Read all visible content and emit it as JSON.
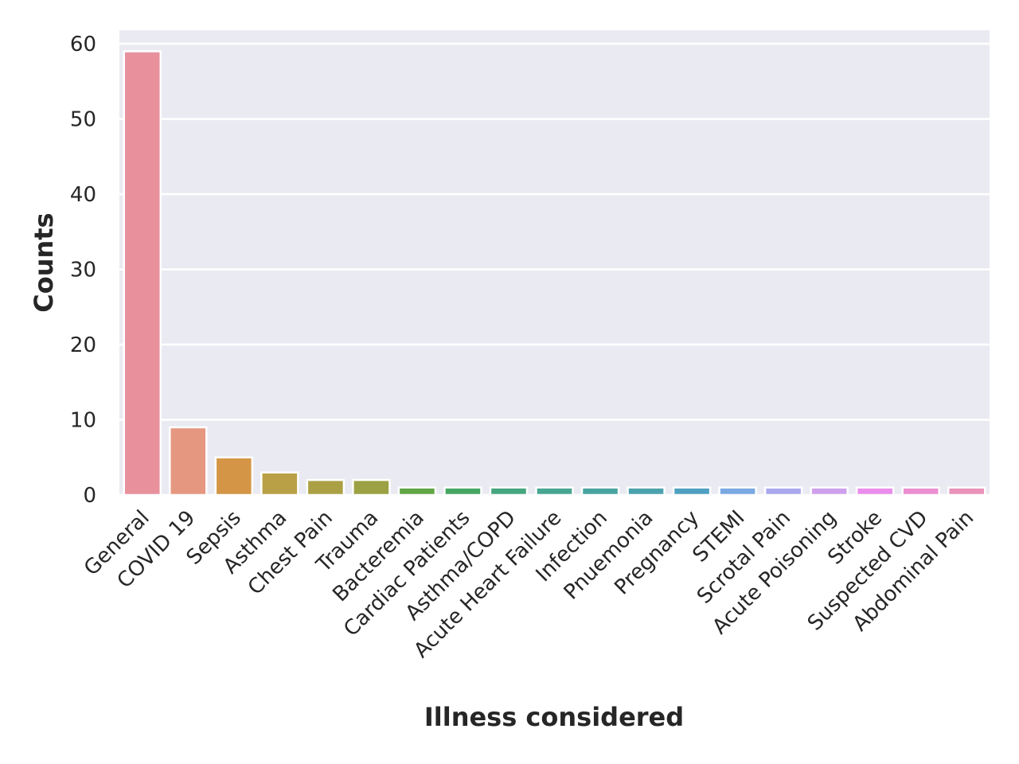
{
  "chart_data": {
    "type": "bar",
    "title": "",
    "xlabel": "Illness considered",
    "ylabel": "Counts",
    "ylim": [
      0,
      62
    ],
    "yticks": [
      0,
      10,
      20,
      30,
      40,
      50,
      60
    ],
    "grid": true,
    "categories": [
      "General",
      "COVID 19",
      "Sepsis",
      "Asthma",
      "Chest Pain",
      "Trauma",
      "Bacteremia",
      "Cardiac Patients",
      "Asthma/COPD",
      "Acute Heart Failure",
      "Infection",
      "Pnuemonia",
      "Pregnancy",
      "STEMI",
      "Scrotal Pain",
      "Acute Poisoning",
      "Stroke",
      "Suspected CVD",
      "Abdominal Pain"
    ],
    "values": [
      59,
      9,
      5,
      3,
      2,
      2,
      1,
      1,
      1,
      1,
      1,
      1,
      1,
      1,
      1,
      1,
      1,
      1,
      1
    ],
    "colors": [
      "#e8919d",
      "#e59780",
      "#d49646",
      "#b9a047",
      "#aba144",
      "#9ca143",
      "#61a545",
      "#46a762",
      "#46a67f",
      "#48a592",
      "#49a3a1",
      "#4ba2ad",
      "#4fa0c0",
      "#7aa8e2",
      "#aaa8ec",
      "#cea0ec",
      "#ea8cec",
      "#eb8ed2",
      "#e993b9"
    ]
  }
}
